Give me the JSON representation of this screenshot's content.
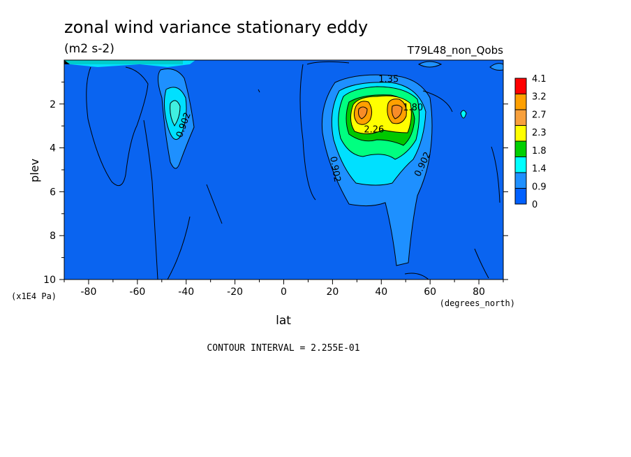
{
  "chart_data": {
    "type": "contour",
    "title": "zonal wind variance stationary eddy",
    "subtitle": "(m2 s-2)",
    "run_label": "T79L48_non_Qobs",
    "xlabel": "lat",
    "x_units": "(degrees_north)",
    "ylabel": "plev",
    "y_units": "(x1E4 Pa)",
    "xlim": [
      -90,
      90
    ],
    "ylim": [
      0,
      10
    ],
    "y_inverted": true,
    "x_ticks": [
      "-80",
      "-60",
      "-40",
      "-20",
      "0",
      "20",
      "40",
      "60",
      "80"
    ],
    "x_tick_values": [
      -80,
      -60,
      -40,
      -20,
      0,
      20,
      40,
      60,
      80
    ],
    "y_ticks": [
      "2",
      "4",
      "6",
      "8",
      "10"
    ],
    "y_tick_values": [
      2,
      4,
      6,
      8,
      10
    ],
    "colorbar_labels": [
      "4.1",
      "3.2",
      "2.7",
      "2.3",
      "1.8",
      "1.4",
      "0.9",
      "0"
    ],
    "colorbar_colors": [
      "#ff0000",
      "#ffa000",
      "#f8a03c",
      "#ffff00",
      "#00d000",
      "#00ffff",
      "#1e90ff",
      "#0060ff"
    ],
    "contour_labels": [
      {
        "text": "1.35",
        "lat": 43,
        "plev": 1.0
      },
      {
        "text": "1.80",
        "lat": 53,
        "plev": 2.3
      },
      {
        "text": "2.26",
        "lat": 37,
        "plev": 3.3
      },
      {
        "text": "0.902",
        "lat": -40,
        "plev": 3.0
      },
      {
        "text": "0.902",
        "lat": 20,
        "plev": 5.0
      },
      {
        "text": "0.902",
        "lat": 58,
        "plev": 4.8
      }
    ],
    "features": [
      {
        "name": "NH jet maximum west",
        "lat": 32,
        "plev": 2.4,
        "value": 3.0
      },
      {
        "name": "NH jet maximum east",
        "lat": 47,
        "plev": 2.4,
        "value": 3.0
      },
      {
        "name": "SH maximum",
        "lat": -44,
        "plev": 2.4,
        "value": 1.5
      }
    ],
    "contour_interval_text": "CONTOUR INTERVAL = 2.255E-01",
    "grid": false
  }
}
